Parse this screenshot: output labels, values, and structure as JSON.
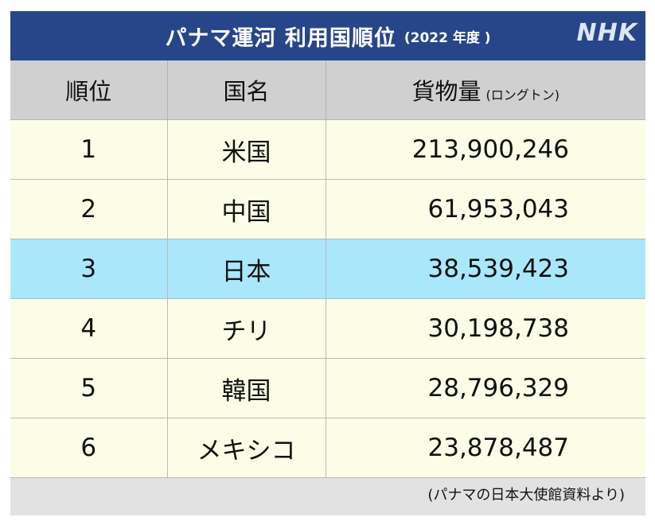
{
  "title": {
    "main": "パナマ運河 利用国順位",
    "sub": "(2022 年度 )"
  },
  "logo": "NHK",
  "table": {
    "headers": {
      "rank": "順位",
      "country": "国名",
      "cargo": "貨物量",
      "cargo_unit": "(ロングトン)"
    },
    "rows": [
      {
        "rank": "1",
        "country": "米国",
        "cargo": "213,900,246"
      },
      {
        "rank": "2",
        "country": "中国",
        "cargo": "61,953,043"
      },
      {
        "rank": "3",
        "country": "日本",
        "cargo": "38,539,423"
      },
      {
        "rank": "4",
        "country": "チリ",
        "cargo": "30,198,738"
      },
      {
        "rank": "5",
        "country": "韓国",
        "cargo": "28,796,329"
      },
      {
        "rank": "6",
        "country": "メキシコ",
        "cargo": "23,878,487"
      }
    ],
    "highlighted_rank": "3"
  },
  "source": "(パナマの日本大使館資料より)",
  "colors": {
    "title_bar": "#27468a",
    "header_bg": "#d0d0d0",
    "row_bg": "#fbfde6",
    "highlight_bg": "#a9e8fb",
    "footer_bg": "#e2e2e2"
  }
}
